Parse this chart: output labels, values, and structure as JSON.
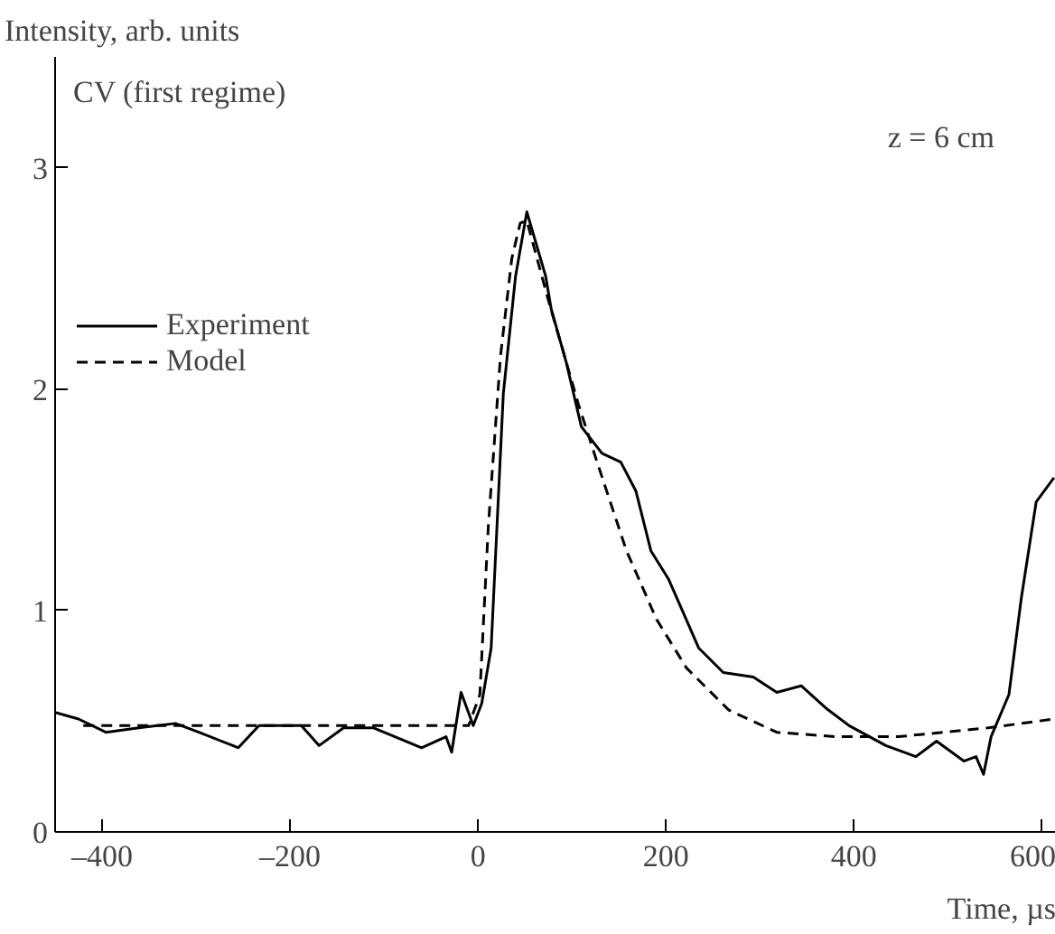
{
  "chart_data": {
    "type": "line",
    "xlabel": "Time, µs",
    "ylabel": "Intensity, arb. units",
    "annotations": [
      "CV (first regime)",
      "z = 6 cm"
    ],
    "xlim": [
      -450,
      615
    ],
    "ylim": [
      0,
      3.5
    ],
    "xticks": [
      {
        "value": -400,
        "label": "–400"
      },
      {
        "value": -200,
        "label": "–200"
      },
      0,
      200,
      400,
      600
    ],
    "yticks": [
      0,
      1,
      2,
      3
    ],
    "grid": false,
    "legend": "top left",
    "series": [
      {
        "name": "Experiment",
        "color": "#000000",
        "line_style": "solid",
        "x": [
          -450,
          -425,
          -396,
          -361,
          -322,
          -297,
          -255,
          -233,
          -188,
          -169,
          -143,
          -111,
          -60,
          -34,
          -28,
          -18,
          -5,
          4,
          14,
          27,
          40,
          52,
          72,
          78,
          94,
          110,
          132,
          152,
          168,
          184,
          203,
          235,
          261,
          293,
          318,
          344,
          370,
          395,
          434,
          466,
          488,
          517,
          530,
          538,
          546,
          565,
          578,
          594,
          613
        ],
        "values": [
          0.54,
          0.51,
          0.45,
          0.47,
          0.49,
          0.45,
          0.38,
          0.48,
          0.48,
          0.39,
          0.47,
          0.47,
          0.38,
          0.43,
          0.36,
          0.63,
          0.48,
          0.58,
          0.83,
          1.98,
          2.51,
          2.8,
          2.51,
          2.36,
          2.12,
          1.83,
          1.71,
          1.67,
          1.54,
          1.27,
          1.14,
          0.83,
          0.72,
          0.7,
          0.63,
          0.66,
          0.56,
          0.48,
          0.39,
          0.34,
          0.41,
          0.32,
          0.34,
          0.26,
          0.43,
          0.62,
          1.05,
          1.49,
          1.6
        ]
      },
      {
        "name": "Model",
        "color": "#000000",
        "line_style": "dashed",
        "x": [
          -420,
          -10,
          2,
          11,
          24,
          36,
          45,
          52,
          75,
          107,
          126,
          158,
          190,
          222,
          267,
          318,
          382,
          447,
          543,
          613
        ],
        "values": [
          0.48,
          0.48,
          0.62,
          1.38,
          2.15,
          2.59,
          2.75,
          2.76,
          2.4,
          1.93,
          1.68,
          1.27,
          0.96,
          0.74,
          0.55,
          0.45,
          0.43,
          0.43,
          0.47,
          0.51
        ]
      }
    ]
  }
}
